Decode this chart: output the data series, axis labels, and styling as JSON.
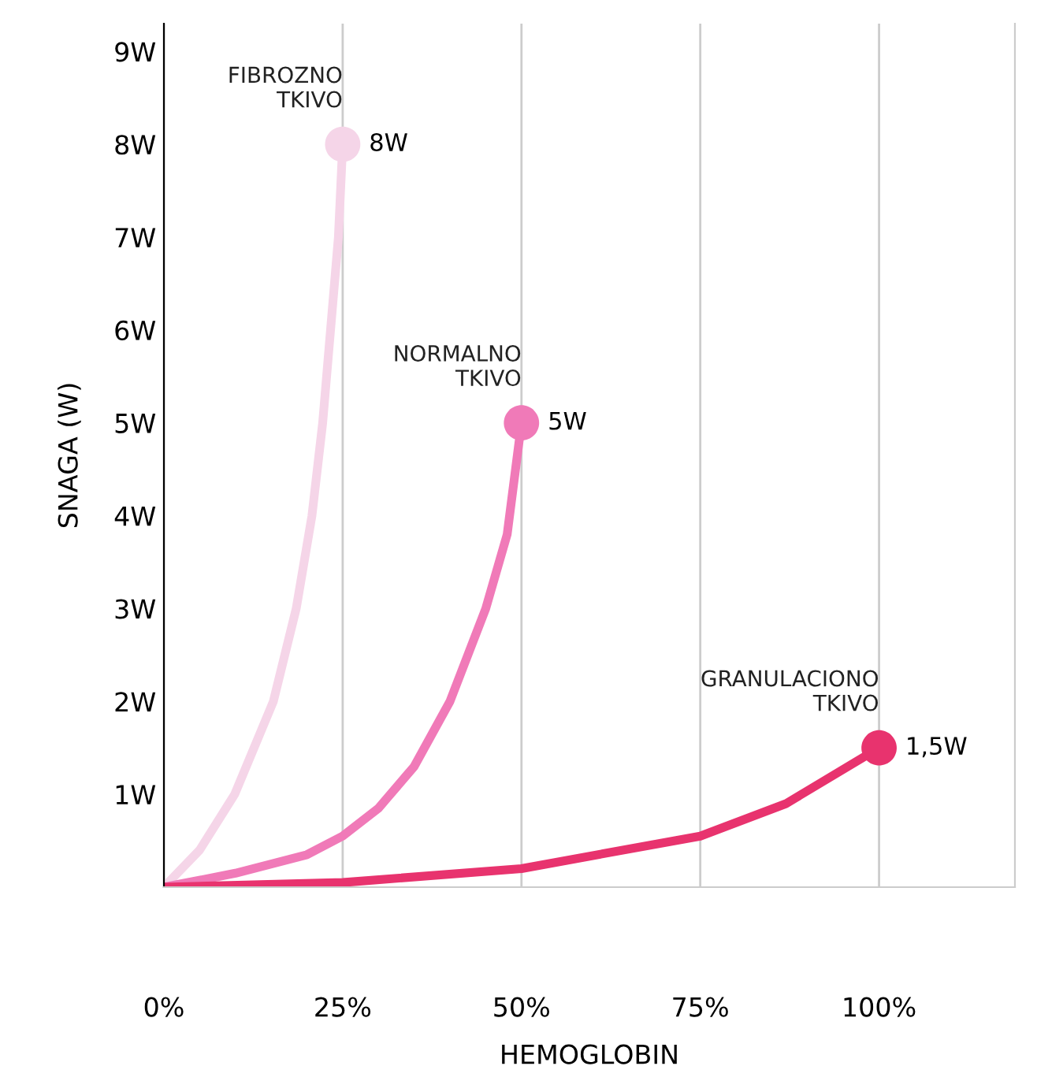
{
  "chart_data": {
    "type": "line",
    "xlabel": "HEMOGLOBIN",
    "ylabel": "SNAGA (W)",
    "xlim": [
      0,
      119
    ],
    "ylim": [
      0,
      9.3
    ],
    "xticks": [
      {
        "value": 0,
        "label": "0%"
      },
      {
        "value": 25,
        "label": "25%"
      },
      {
        "value": 50,
        "label": "50%"
      },
      {
        "value": 75,
        "label": "75%"
      },
      {
        "value": 100,
        "label": "100%"
      }
    ],
    "yticks": [
      {
        "value": 1,
        "label": "1W"
      },
      {
        "value": 2,
        "label": "2W"
      },
      {
        "value": 3,
        "label": "3W"
      },
      {
        "value": 4,
        "label": "4W"
      },
      {
        "value": 5,
        "label": "5W"
      },
      {
        "value": 6,
        "label": "6W"
      },
      {
        "value": 7,
        "label": "7W"
      },
      {
        "value": 8,
        "label": "8W"
      },
      {
        "value": 9,
        "label": "9W"
      }
    ],
    "grid": "x",
    "legend": false,
    "series": [
      {
        "name": "FIBROZNO\nTKIVO",
        "color": "#f5d5e8",
        "x": [
          0,
          5,
          9.9,
          15.3,
          18.5,
          20.7,
          22.2,
          23.3,
          24.4,
          25
        ],
        "values": [
          0,
          0.4,
          1,
          2,
          3,
          4,
          5,
          6,
          7,
          8
        ]
      },
      {
        "name": "NORMALNO\nTKIVO",
        "color": "#f07ab8",
        "x": [
          0,
          10,
          20,
          25,
          30,
          35,
          40,
          45,
          48,
          50
        ],
        "values": [
          0,
          0.15,
          0.35,
          0.55,
          0.85,
          1.3,
          2.0,
          3.0,
          3.8,
          5
        ]
      },
      {
        "name": "GRANULACIONO\nTKIVO",
        "color": "#e8336e",
        "x": [
          0,
          25,
          50,
          75,
          87,
          100
        ],
        "values": [
          0,
          0.05,
          0.2,
          0.55,
          0.9,
          1.5
        ]
      },
      {
        "type": "scatter",
        "x": [
          25,
          50,
          100
        ],
        "values": [
          8,
          5,
          1.5
        ],
        "colors": [
          "#f5d5e8",
          "#f07ab8",
          "#e8336e"
        ],
        "value_labels": [
          "8W",
          "5W",
          "1,5W"
        ]
      }
    ]
  }
}
